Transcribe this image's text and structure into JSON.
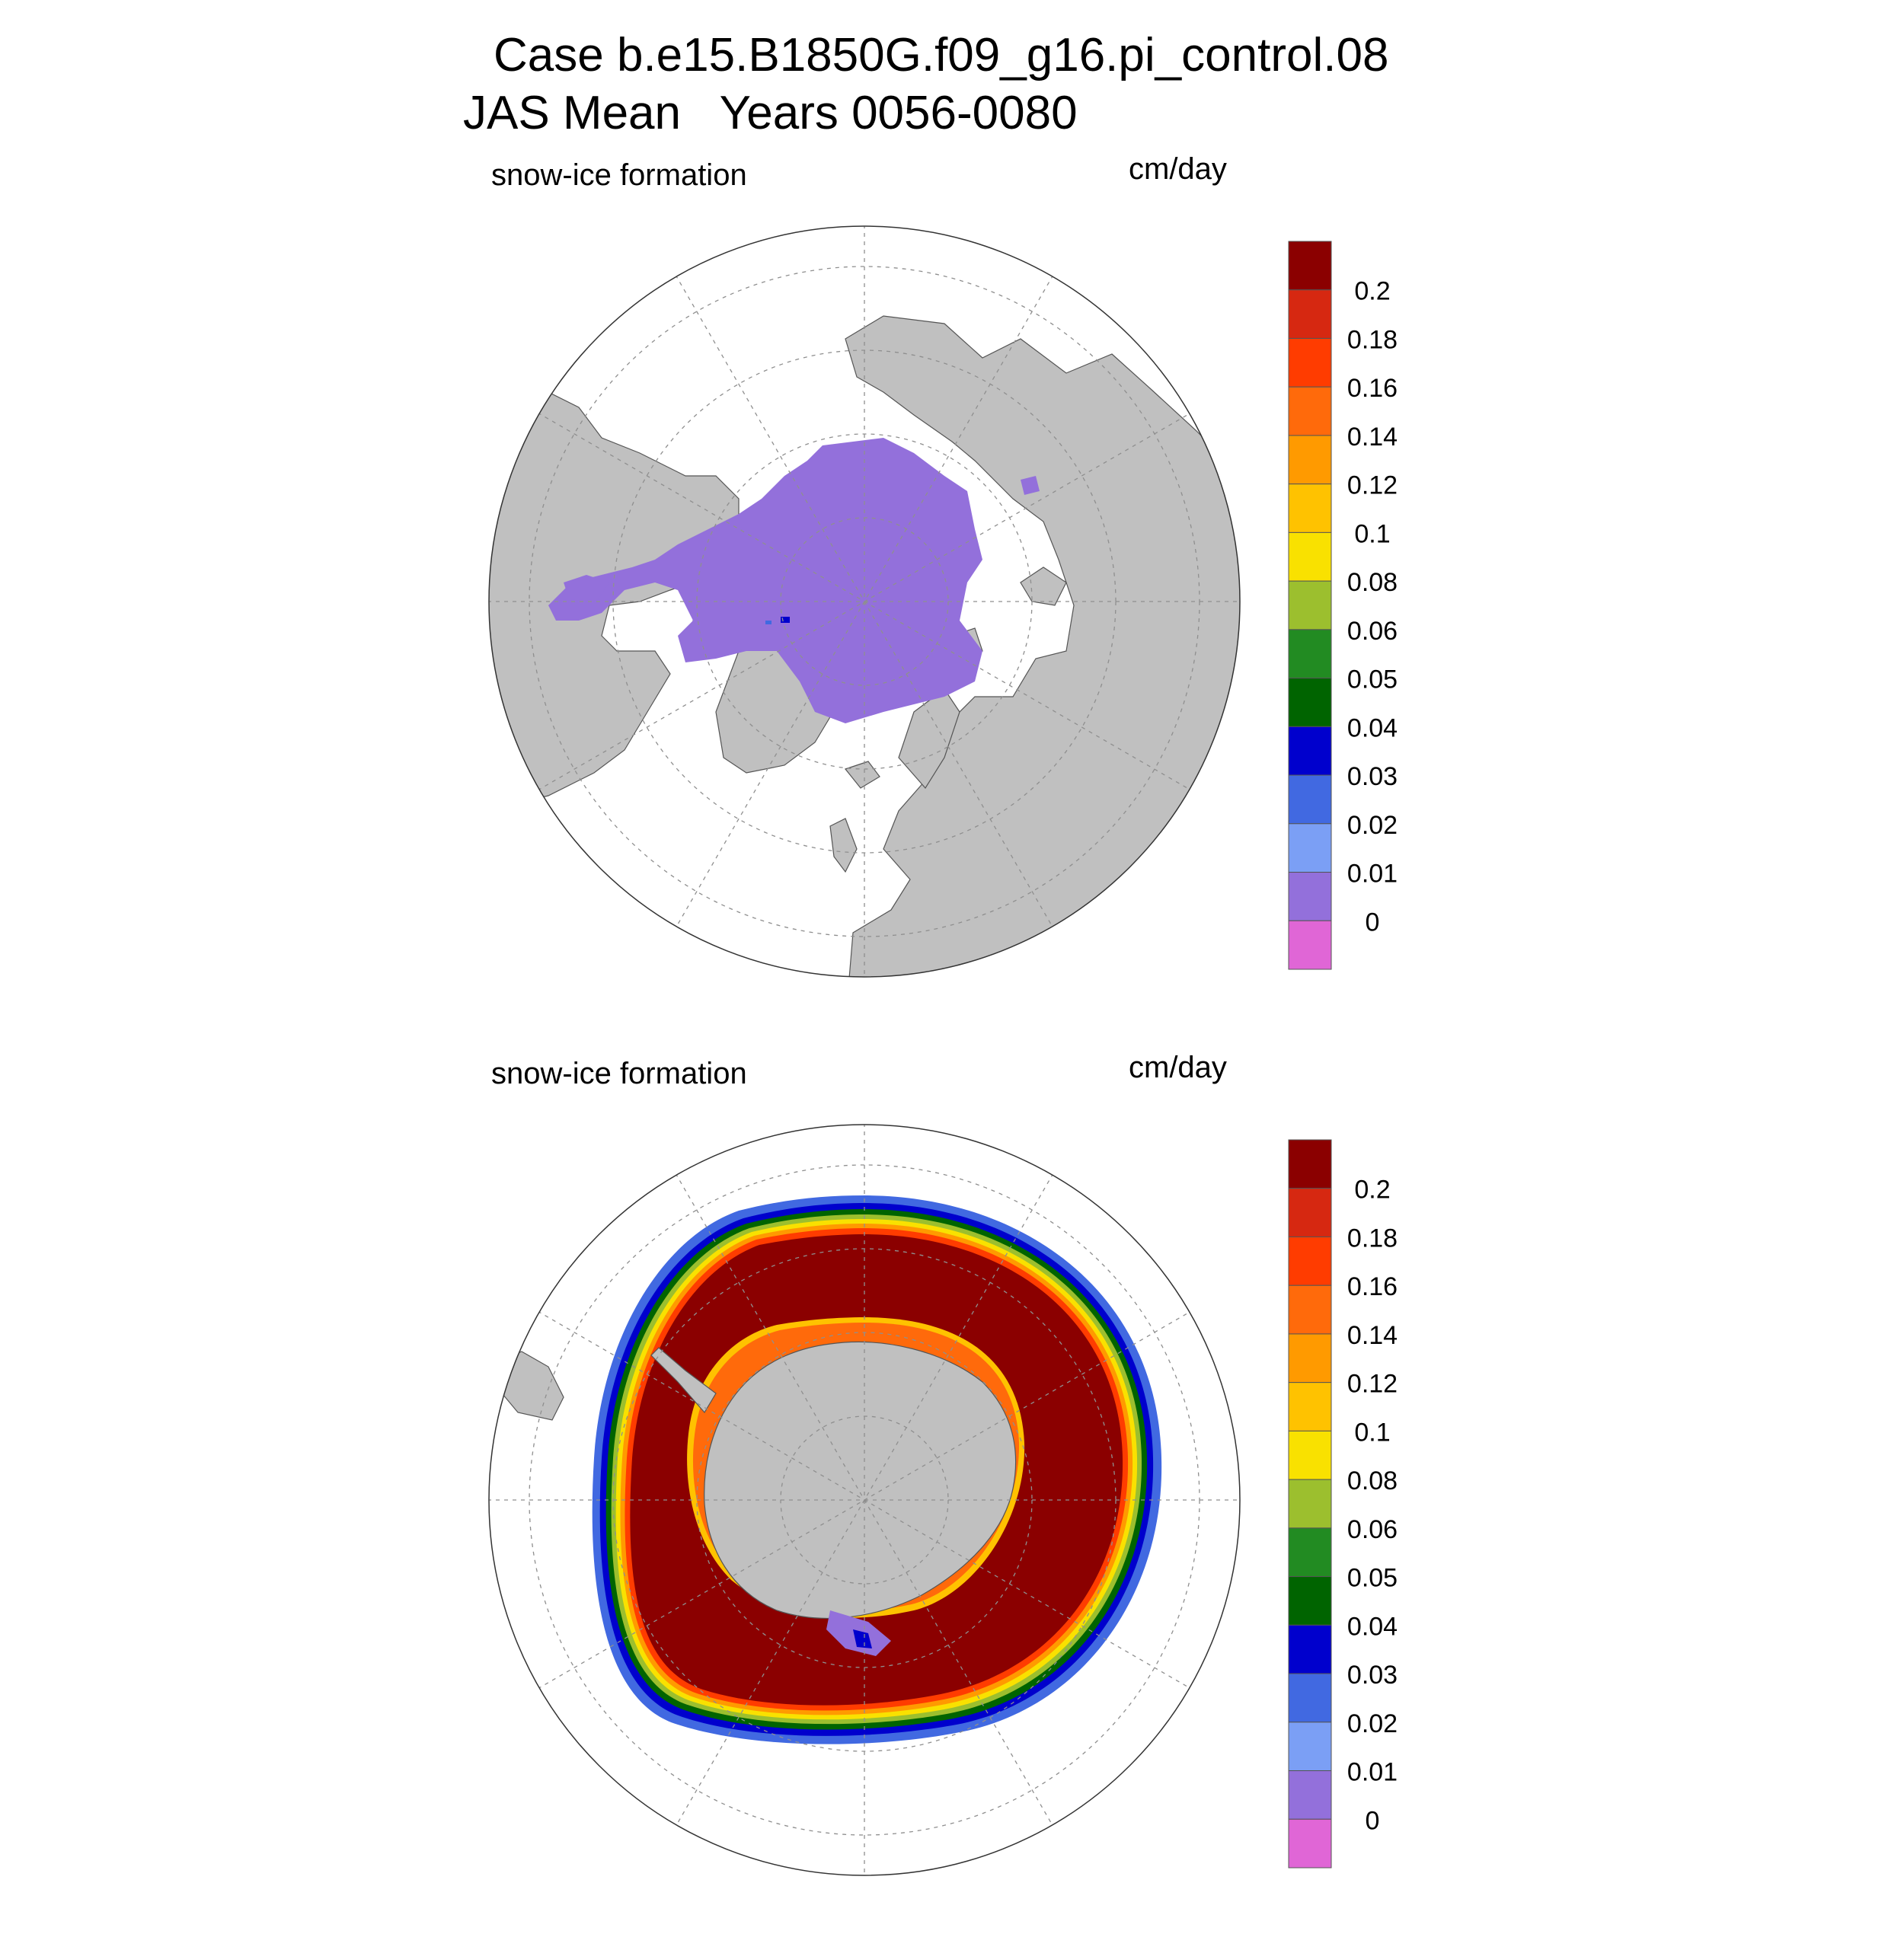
{
  "title": {
    "case_line": "Case b.e15.B1850G.f09_g16.pi_control.08",
    "mean_line": "JAS Mean   Years 0056-0080"
  },
  "panels": [
    {
      "hemisphere": "north",
      "variable_label": "snow-ice formation",
      "unit_label": "cm/day",
      "field": "snow-ice formation",
      "features": [
        {
          "name": "arctic-ice-pack",
          "value_class": "0.01 or less (lowest nonzero band)"
        },
        {
          "name": "hudson-bay-ice",
          "value_class": "0.01 or less"
        },
        {
          "name": "baffin-bay-ice",
          "value_class": "0.01 or less"
        },
        {
          "name": "small-blue-spot",
          "value_class": "0.03-0.04"
        }
      ]
    },
    {
      "hemisphere": "south",
      "variable_label": "snow-ice formation",
      "unit_label": "cm/day",
      "field": "snow-ice formation",
      "features": [
        {
          "name": "antarctic-ice-ring",
          "value_class": "greater than 0.2 (interior), grading to 0 at the ice edge"
        },
        {
          "name": "weddell-sea-gradient",
          "value_class": "0.04-0.2"
        },
        {
          "name": "ross-sea-gradient",
          "value_class": "0-0.2"
        }
      ]
    }
  ],
  "colorbar": {
    "labels": [
      "0.2",
      "0.18",
      "0.16",
      "0.14",
      "0.12",
      "0.1",
      "0.08",
      "0.06",
      "0.05",
      "0.04",
      "0.03",
      "0.02",
      "0.01",
      "0"
    ],
    "colors_top_to_bottom": [
      "#8b0000",
      "#d62811",
      "#ff3c00",
      "#ff6a0b",
      "#ff9a00",
      "#ffc200",
      "#f9e100",
      "#9cbf2e",
      "#228b22",
      "#006400",
      "#0000cd",
      "#4169e1",
      "#7b9ff5",
      "#9370db",
      "#e066d6"
    ]
  },
  "colors": {
    "land": "#c0c0c0",
    "ocean": "#ffffff",
    "grid": "#8f8f8f"
  }
}
